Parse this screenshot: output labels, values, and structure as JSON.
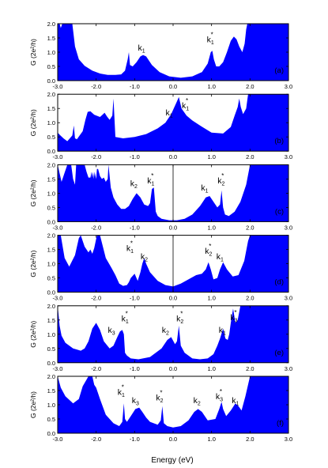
{
  "figure": {
    "xlabel": "Energy (eV)",
    "ylabel": "G (2e²/h)",
    "fill_color": "#0000ff",
    "line_color": "#000000"
  },
  "chart_data": [
    {
      "type": "area",
      "panel_label": "(a)",
      "xlim": [
        -3.0,
        3.0
      ],
      "ylim": [
        0.0,
        2.0
      ],
      "xticks": [
        -3.0,
        -2.0,
        -1.0,
        0.0,
        1.0,
        2.0,
        3.0
      ],
      "yticks": [
        0.0,
        0.5,
        1.0,
        1.5,
        2.0
      ],
      "show_xtick_labels": true,
      "zero_line": false,
      "x": [
        -3.0,
        -2.95,
        -2.92,
        -2.88,
        -2.82,
        -2.75,
        -2.68,
        -2.64,
        -2.62,
        -2.55,
        -2.45,
        -2.3,
        -2.1,
        -1.9,
        -1.7,
        -1.5,
        -1.35,
        -1.25,
        -1.18,
        -1.15,
        -1.12,
        -1.05,
        -0.95,
        -0.85,
        -0.78,
        -0.7,
        -0.55,
        -0.35,
        -0.1,
        0.2,
        0.5,
        0.75,
        0.9,
        0.98,
        1.02,
        1.06,
        1.12,
        1.2,
        1.3,
        1.4,
        1.5,
        1.58,
        1.65,
        1.72,
        1.8,
        1.86,
        1.9,
        1.93,
        1.96,
        2.0,
        2.5,
        3.0
      ],
      "values": [
        2.0,
        2.0,
        1.85,
        2.0,
        2.0,
        2.0,
        2.0,
        2.0,
        2.0,
        1.2,
        0.75,
        0.52,
        0.35,
        0.25,
        0.2,
        0.2,
        0.22,
        0.35,
        0.75,
        1.0,
        0.55,
        0.5,
        0.65,
        0.85,
        0.9,
        0.85,
        0.55,
        0.3,
        0.15,
        0.1,
        0.15,
        0.3,
        0.6,
        1.0,
        1.05,
        0.75,
        0.5,
        0.5,
        0.65,
        1.0,
        1.4,
        1.55,
        1.45,
        1.2,
        1.0,
        1.3,
        1.8,
        2.0,
        2.0,
        2.0,
        2.0,
        2.0
      ],
      "annotations": [
        {
          "text": "k",
          "sub": "1",
          "sup": "",
          "x": -0.82,
          "y": 1.05
        },
        {
          "text": "k",
          "sub": "1",
          "sup": "*",
          "x": 0.97,
          "y": 1.35
        }
      ]
    },
    {
      "type": "area",
      "panel_label": "(b)",
      "xlim": [
        -3.0,
        3.0
      ],
      "ylim": [
        0.0,
        2.0
      ],
      "xticks": [
        -3.0,
        -2.0,
        -1.0,
        0.0,
        1.0,
        2.0,
        3.0
      ],
      "yticks": [
        0.0,
        0.5,
        1.0,
        1.5,
        2.0
      ],
      "show_xtick_labels": true,
      "zero_line": false,
      "x": [
        -3.0,
        -2.95,
        -2.85,
        -2.75,
        -2.62,
        -2.58,
        -2.55,
        -2.5,
        -2.35,
        -2.28,
        -2.22,
        -2.15,
        -2.05,
        -1.9,
        -1.78,
        -1.72,
        -1.65,
        -1.58,
        -1.55,
        -1.5,
        -1.3,
        -1.0,
        -0.7,
        -0.4,
        -0.2,
        -0.05,
        0.1,
        0.15,
        0.22,
        0.35,
        0.5,
        0.7,
        1.0,
        1.3,
        1.5,
        1.6,
        1.68,
        1.72,
        1.76,
        1.82,
        1.9,
        1.95,
        2.0,
        2.5,
        3.0
      ],
      "values": [
        0.65,
        0.58,
        0.45,
        0.35,
        0.55,
        0.9,
        0.45,
        0.42,
        0.7,
        1.1,
        1.38,
        1.4,
        1.28,
        1.2,
        1.35,
        1.22,
        1.1,
        1.25,
        1.85,
        0.5,
        0.45,
        0.5,
        0.6,
        0.8,
        1.0,
        1.3,
        1.75,
        1.9,
        1.5,
        1.25,
        1.08,
        0.9,
        0.65,
        0.62,
        0.85,
        1.25,
        1.55,
        1.85,
        1.55,
        1.3,
        1.5,
        2.0,
        2.0,
        2.0,
        2.0
      ],
      "annotations": [
        {
          "text": "k",
          "sub": "1",
          "sup": "",
          "x": -0.1,
          "y": 1.25
        },
        {
          "text": "k",
          "sub": "1",
          "sup": "*",
          "x": 0.32,
          "y": 1.5
        }
      ]
    },
    {
      "type": "area",
      "panel_label": "(c)",
      "xlim": [
        -3.0,
        3.0
      ],
      "ylim": [
        0.0,
        2.0
      ],
      "xticks": [
        -3.0,
        -2.0,
        -1.0,
        0.0,
        1.0,
        2.0,
        3.0
      ],
      "yticks": [
        0.0,
        0.5,
        1.0,
        1.5,
        2.0
      ],
      "show_xtick_labels": true,
      "zero_line": true,
      "x": [
        -3.0,
        -2.95,
        -2.9,
        -2.85,
        -2.75,
        -2.65,
        -2.6,
        -2.55,
        -2.52,
        -2.48,
        -2.3,
        -2.25,
        -2.2,
        -2.15,
        -2.12,
        -2.1,
        -2.08,
        -2.06,
        -2.04,
        -2.0,
        -1.98,
        -1.95,
        -1.9,
        -1.85,
        -1.8,
        -1.75,
        -1.7,
        -1.68,
        -1.62,
        -1.55,
        -1.45,
        -1.35,
        -1.25,
        -1.15,
        -1.05,
        -0.95,
        -0.85,
        -0.75,
        -0.65,
        -0.6,
        -0.55,
        -0.5,
        -0.45,
        -0.4,
        -0.3,
        -0.1,
        0.1,
        0.3,
        0.5,
        0.7,
        0.85,
        0.95,
        1.05,
        1.15,
        1.22,
        1.26,
        1.3,
        1.35,
        1.45,
        1.6,
        1.75,
        1.9,
        2.0,
        2.5,
        3.0
      ],
      "values": [
        2.0,
        1.7,
        1.4,
        1.6,
        2.0,
        2.0,
        1.5,
        1.3,
        2.0,
        2.0,
        2.0,
        1.75,
        1.55,
        1.55,
        1.75,
        1.55,
        1.75,
        1.5,
        1.75,
        1.5,
        1.85,
        1.85,
        1.6,
        1.5,
        1.55,
        1.4,
        1.5,
        2.0,
        1.2,
        0.85,
        0.6,
        0.45,
        0.45,
        0.55,
        0.8,
        1.0,
        0.85,
        0.6,
        0.55,
        0.65,
        1.15,
        1.2,
        0.35,
        0.2,
        0.1,
        0.05,
        0.05,
        0.1,
        0.25,
        0.55,
        0.85,
        0.9,
        0.7,
        0.5,
        0.6,
        1.1,
        0.5,
        0.25,
        0.2,
        0.35,
        0.7,
        1.3,
        2.0,
        2.0,
        2.0
      ],
      "annotations": [
        {
          "text": "k",
          "sub": "2",
          "sup": "",
          "x": -1.02,
          "y": 1.25
        },
        {
          "text": "k",
          "sub": "1",
          "sup": "*",
          "x": -0.58,
          "y": 1.35
        },
        {
          "text": "k",
          "sub": "1",
          "sup": "",
          "x": 0.82,
          "y": 1.1
        },
        {
          "text": "k",
          "sub": "2",
          "sup": "*",
          "x": 1.25,
          "y": 1.35
        }
      ]
    },
    {
      "type": "area",
      "panel_label": "(d)",
      "xlim": [
        -3.0,
        3.0
      ],
      "ylim": [
        0.0,
        2.0
      ],
      "xticks": [
        -3.0,
        -2.0,
        -1.0,
        0.0,
        1.0,
        2.0,
        3.0
      ],
      "yticks": [
        0.0,
        0.5,
        1.0,
        1.5,
        2.0
      ],
      "show_xtick_labels": true,
      "zero_line": true,
      "x": [
        -3.0,
        -2.92,
        -2.82,
        -2.7,
        -2.55,
        -2.45,
        -2.4,
        -2.3,
        -2.2,
        -2.15,
        -2.1,
        -2.05,
        -1.98,
        -1.9,
        -1.75,
        -1.6,
        -1.5,
        -1.4,
        -1.3,
        -1.2,
        -1.15,
        -1.1,
        -1.0,
        -0.92,
        -0.85,
        -0.8,
        -0.75,
        -0.7,
        -0.6,
        -0.4,
        -0.2,
        0.0,
        0.2,
        0.4,
        0.6,
        0.75,
        0.85,
        0.92,
        0.98,
        1.05,
        1.15,
        1.22,
        1.3,
        1.4,
        1.55,
        1.7,
        1.85,
        1.95,
        2.0,
        2.5,
        3.0
      ],
      "values": [
        2.0,
        2.0,
        1.2,
        0.9,
        1.3,
        1.9,
        2.0,
        1.6,
        1.4,
        1.5,
        1.35,
        1.55,
        2.0,
        2.0,
        1.2,
        0.85,
        0.6,
        0.3,
        0.22,
        0.25,
        0.35,
        0.5,
        0.65,
        0.4,
        0.7,
        1.0,
        1.2,
        1.0,
        0.7,
        0.4,
        0.25,
        0.2,
        0.3,
        0.45,
        0.6,
        0.65,
        0.8,
        1.05,
        0.8,
        0.45,
        0.5,
        0.8,
        1.05,
        0.8,
        0.55,
        0.6,
        1.1,
        1.8,
        2.0,
        2.0,
        2.0
      ],
      "annotations": [
        {
          "text": "k",
          "sub": "1",
          "sup": "*",
          "x": -1.12,
          "y": 1.45
        },
        {
          "text": "k",
          "sub": "2",
          "sup": "",
          "x": -0.75,
          "y": 1.15
        },
        {
          "text": "k",
          "sub": "2",
          "sup": "*",
          "x": 0.92,
          "y": 1.35
        },
        {
          "text": "k",
          "sub": "1",
          "sup": "",
          "x": 1.22,
          "y": 1.15
        }
      ]
    },
    {
      "type": "area",
      "panel_label": "(e)",
      "xlim": [
        -3.0,
        3.0
      ],
      "ylim": [
        0.0,
        2.0
      ],
      "xticks": [
        -3.0,
        -2.0,
        -1.0,
        0.0,
        1.0,
        2.0,
        3.0
      ],
      "yticks": [
        0.0,
        0.5,
        1.0,
        1.5,
        2.0
      ],
      "show_xtick_labels": true,
      "zero_line": false,
      "x": [
        -3.0,
        -2.95,
        -2.9,
        -2.8,
        -2.6,
        -2.4,
        -2.3,
        -2.2,
        -2.1,
        -2.0,
        -1.9,
        -1.8,
        -1.65,
        -1.55,
        -1.45,
        -1.38,
        -1.32,
        -1.28,
        -1.25,
        -1.2,
        -1.1,
        -0.9,
        -0.6,
        -0.3,
        -0.15,
        -0.05,
        0.05,
        0.1,
        0.15,
        0.2,
        0.3,
        0.5,
        0.7,
        0.9,
        1.05,
        1.15,
        1.22,
        1.3,
        1.36,
        1.42,
        1.46,
        1.5,
        1.56,
        1.62,
        1.68,
        1.75,
        1.85,
        2.0,
        2.5,
        3.0
      ],
      "values": [
        2.0,
        1.3,
        0.95,
        0.7,
        0.5,
        0.42,
        0.5,
        0.75,
        1.2,
        1.4,
        1.15,
        0.75,
        0.5,
        0.6,
        0.9,
        1.1,
        1.15,
        1.0,
        0.35,
        0.25,
        0.15,
        0.12,
        0.2,
        0.5,
        0.8,
        0.9,
        0.65,
        0.75,
        1.3,
        0.6,
        0.35,
        0.15,
        0.12,
        0.15,
        0.3,
        0.6,
        0.85,
        1.2,
        0.85,
        0.8,
        1.0,
        1.4,
        1.9,
        1.4,
        1.5,
        2.0,
        2.0,
        2.0,
        2.0,
        2.0
      ],
      "annotations": [
        {
          "text": "k",
          "sub": "3",
          "sup": "",
          "x": -1.6,
          "y": 1.05
        },
        {
          "text": "k",
          "sub": "1",
          "sup": "*",
          "x": -1.25,
          "y": 1.45
        },
        {
          "text": "k",
          "sub": "2",
          "sup": "",
          "x": -0.2,
          "y": 1.05
        },
        {
          "text": "k",
          "sub": "2",
          "sup": "*",
          "x": 0.18,
          "y": 1.45
        },
        {
          "text": "k",
          "sub": "1",
          "sup": "",
          "x": 1.28,
          "y": 1.05
        },
        {
          "text": "k",
          "sub": "3",
          "sup": "*",
          "x": 1.58,
          "y": 1.5
        }
      ]
    },
    {
      "type": "area",
      "panel_label": "(f)",
      "xlim": [
        -3.0,
        3.0
      ],
      "ylim": [
        0.0,
        2.0
      ],
      "xticks": [
        -3.0,
        -2.0,
        -1.0,
        0.0,
        1.0,
        2.0,
        3.0
      ],
      "yticks": [
        0.0,
        0.5,
        1.0,
        1.5,
        2.0
      ],
      "show_xtick_labels": true,
      "zero_line": false,
      "x": [
        -3.0,
        -2.92,
        -2.8,
        -2.6,
        -2.45,
        -2.35,
        -2.2,
        -2.1,
        -2.05,
        -2.0,
        -1.9,
        -1.75,
        -1.55,
        -1.4,
        -1.32,
        -1.28,
        -1.25,
        -1.2,
        -1.1,
        -0.98,
        -0.88,
        -0.8,
        -0.7,
        -0.6,
        -0.4,
        -0.32,
        -0.28,
        -0.24,
        -0.15,
        0.0,
        0.2,
        0.4,
        0.55,
        0.65,
        0.75,
        0.9,
        1.1,
        1.2,
        1.26,
        1.3,
        1.38,
        1.5,
        1.62,
        1.7,
        1.78,
        1.88,
        2.0,
        2.5,
        3.0
      ],
      "values": [
        2.0,
        1.6,
        1.3,
        1.05,
        1.2,
        1.65,
        2.0,
        2.0,
        1.7,
        1.6,
        1.2,
        0.65,
        0.35,
        0.25,
        0.4,
        1.05,
        0.5,
        0.4,
        0.6,
        0.85,
        0.9,
        0.75,
        0.55,
        0.4,
        0.3,
        0.45,
        0.95,
        0.35,
        0.25,
        0.2,
        0.25,
        0.45,
        0.75,
        0.85,
        0.75,
        0.45,
        0.5,
        0.85,
        1.1,
        0.85,
        0.6,
        0.8,
        1.05,
        0.95,
        0.8,
        1.3,
        2.0,
        2.0,
        2.0
      ],
      "annotations": [
        {
          "text": "k",
          "sub": "1",
          "sup": "*",
          "x": -1.35,
          "y": 1.35
        },
        {
          "text": "k",
          "sub": "3",
          "sup": "",
          "x": -0.98,
          "y": 1.05
        },
        {
          "text": "k",
          "sub": "2",
          "sup": "*",
          "x": -0.35,
          "y": 1.15
        },
        {
          "text": "k",
          "sub": "2",
          "sup": "",
          "x": 0.62,
          "y": 1.05
        },
        {
          "text": "k",
          "sub": "3",
          "sup": "*",
          "x": 1.2,
          "y": 1.2
        },
        {
          "text": "k",
          "sub": "1",
          "sup": "",
          "x": 1.62,
          "y": 1.05
        }
      ]
    }
  ]
}
